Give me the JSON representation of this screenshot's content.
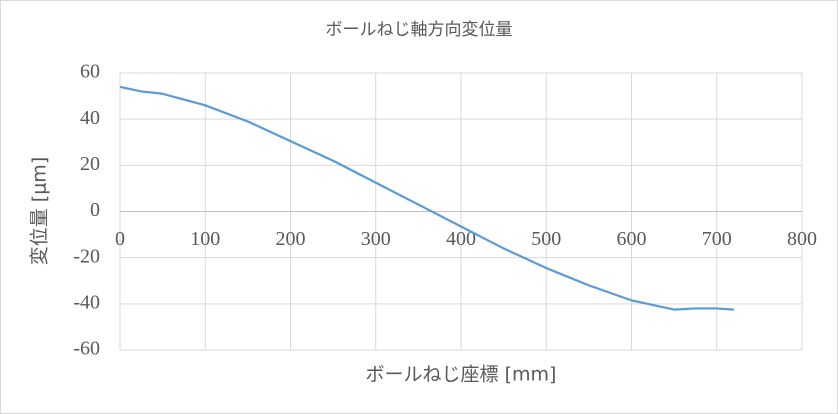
{
  "chart_data": {
    "type": "line",
    "title": "ボールねじ軸方向変位量",
    "x_label": "ボールねじ座標 [mm]",
    "y_label": "変位量 [μm]",
    "x": [
      0,
      25,
      50,
      100,
      150,
      200,
      250,
      300,
      350,
      400,
      450,
      500,
      550,
      600,
      650,
      675,
      700,
      720
    ],
    "values": [
      54,
      52,
      51,
      46,
      39,
      30.5,
      22,
      12.5,
      3,
      -6.5,
      -16,
      -24.5,
      -32,
      -38.5,
      -42.5,
      -42,
      -42,
      -42.5
    ],
    "color": "#5b9bd5",
    "xlim": [
      0,
      800
    ],
    "xticks": [
      0,
      100,
      200,
      300,
      400,
      500,
      600,
      700,
      800
    ],
    "ylim": [
      -60,
      60
    ],
    "yticks": [
      -60,
      -40,
      -20,
      0,
      20,
      40,
      60
    ],
    "grid": true
  }
}
